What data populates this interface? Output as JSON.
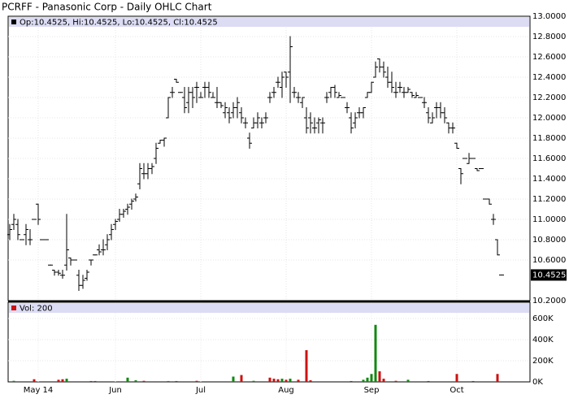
{
  "chart_data": {
    "type": "ohlc",
    "title": "PCRFF - Panasonic Corp - Daily OHLC Chart",
    "info": "Op:10.4525, Hi:10.4525, Lo:10.4525, Cl:10.4525",
    "color": "#000000",
    "grid": true,
    "categories": [
      null,
      null,
      null,
      null,
      null,
      null,
      null,
      "May 14",
      null,
      null,
      null,
      null,
      null,
      null,
      null,
      null,
      null,
      null,
      null,
      null,
      null,
      null,
      null,
      null,
      null,
      null,
      "Jun",
      null,
      null,
      null,
      null,
      null,
      null,
      null,
      null,
      null,
      null,
      null,
      null,
      null,
      null,
      null,
      null,
      null,
      null,
      null,
      null,
      "Jul",
      null,
      null,
      null,
      null,
      null,
      null,
      null,
      null,
      null,
      null,
      null,
      null,
      null,
      null,
      null,
      null,
      null,
      null,
      null,
      null,
      "Aug",
      null,
      null,
      null,
      null,
      null,
      null,
      null,
      null,
      null,
      null,
      null,
      null,
      null,
      null,
      null,
      null,
      null,
      null,
      null,
      null,
      "Sep",
      null,
      null,
      null,
      null,
      null,
      null,
      null,
      null,
      null,
      null,
      null,
      null,
      null,
      null,
      null,
      null,
      null,
      null,
      null,
      null,
      "Oct",
      null,
      null,
      null,
      null,
      null,
      null,
      null,
      null,
      null,
      null,
      null
    ],
    "bars": [
      [
        10.85,
        10.95,
        10.8,
        10.9
      ],
      [
        10.95,
        11.05,
        10.9,
        11.0
      ],
      [
        10.95,
        11.0,
        10.8,
        10.85
      ],
      [
        10.8,
        10.8,
        10.8,
        10.8
      ],
      [
        10.85,
        10.95,
        10.75,
        10.9
      ],
      [
        10.8,
        10.9,
        10.75,
        10.8
      ],
      [
        11.0,
        11.0,
        11.0,
        11.0
      ],
      [
        11.15,
        11.15,
        10.95,
        11.0
      ],
      [
        10.8,
        10.8,
        10.8,
        10.8
      ],
      [
        10.8,
        10.8,
        10.8,
        10.8
      ],
      [
        10.55,
        10.55,
        10.55,
        10.55
      ],
      [
        10.5,
        10.5,
        10.45,
        10.48
      ],
      [
        10.48,
        10.5,
        10.45,
        10.47
      ],
      [
        10.45,
        10.5,
        10.42,
        10.45
      ],
      [
        10.55,
        11.05,
        10.5,
        10.7
      ],
      [
        10.62,
        10.62,
        10.55,
        10.6
      ],
      [
        10.6,
        10.6,
        10.6,
        10.6
      ],
      [
        10.45,
        10.5,
        10.3,
        10.35
      ],
      [
        10.35,
        10.45,
        10.32,
        10.4
      ],
      [
        10.42,
        10.5,
        10.4,
        10.48
      ],
      [
        10.6,
        10.6,
        10.55,
        10.6
      ],
      [
        10.65,
        10.65,
        10.65,
        10.65
      ],
      [
        10.7,
        10.75,
        10.65,
        10.68
      ],
      [
        10.7,
        10.8,
        10.65,
        10.7
      ],
      [
        10.75,
        10.85,
        10.7,
        10.8
      ],
      [
        10.85,
        10.95,
        10.8,
        10.9
      ],
      [
        10.95,
        11.0,
        10.9,
        10.98
      ],
      [
        11.0,
        11.1,
        10.98,
        11.05
      ],
      [
        11.05,
        11.1,
        11.02,
        11.08
      ],
      [
        11.1,
        11.15,
        11.05,
        11.12
      ],
      [
        11.15,
        11.2,
        11.1,
        11.18
      ],
      [
        11.2,
        11.25,
        11.18,
        11.22
      ],
      [
        11.35,
        11.55,
        11.3,
        11.5
      ],
      [
        11.45,
        11.55,
        11.4,
        11.45
      ],
      [
        11.45,
        11.55,
        11.4,
        11.5
      ],
      [
        11.5,
        11.55,
        11.45,
        11.52
      ],
      [
        11.6,
        11.75,
        11.55,
        11.7
      ],
      [
        11.75,
        11.78,
        11.75,
        11.78
      ],
      [
        11.78,
        11.8,
        11.72,
        11.8
      ],
      [
        12.0,
        12.2,
        12.0,
        12.2
      ],
      [
        12.25,
        12.3,
        12.2,
        12.25
      ],
      [
        12.38,
        12.38,
        12.35,
        12.35
      ],
      [
        12.25,
        12.25,
        12.25,
        12.25
      ],
      [
        12.2,
        12.3,
        12.05,
        12.1
      ],
      [
        12.15,
        12.3,
        12.05,
        12.25
      ],
      [
        12.25,
        12.3,
        12.1,
        12.2
      ],
      [
        12.3,
        12.35,
        12.15,
        12.3
      ],
      [
        12.2,
        12.25,
        12.2,
        12.2
      ],
      [
        12.3,
        12.35,
        12.2,
        12.3
      ],
      [
        12.3,
        12.35,
        12.2,
        12.25
      ],
      [
        12.2,
        12.25,
        12.2,
        12.2
      ],
      [
        12.15,
        12.3,
        12.1,
        12.15
      ],
      [
        12.15,
        12.15,
        12.1,
        12.12
      ],
      [
        12.05,
        12.15,
        12.0,
        12.1
      ],
      [
        12.05,
        12.1,
        11.95,
        12.0
      ],
      [
        12.05,
        12.15,
        12.0,
        12.1
      ],
      [
        12.1,
        12.2,
        12.0,
        12.15
      ],
      [
        12.05,
        12.1,
        11.95,
        12.0
      ],
      [
        11.95,
        12.0,
        11.9,
        11.95
      ],
      [
        11.8,
        11.85,
        11.7,
        11.75
      ],
      [
        11.9,
        12.0,
        11.9,
        11.95
      ],
      [
        11.95,
        12.05,
        11.9,
        12.0
      ],
      [
        11.95,
        12.0,
        11.9,
        11.95
      ],
      [
        12.0,
        12.05,
        11.95,
        12.0
      ],
      [
        12.2,
        12.25,
        12.15,
        12.2
      ],
      [
        12.25,
        12.3,
        12.2,
        12.25
      ],
      [
        12.35,
        12.4,
        12.3,
        12.35
      ],
      [
        12.3,
        12.45,
        12.2,
        12.4
      ],
      [
        12.45,
        12.45,
        12.3,
        12.4
      ],
      [
        12.45,
        12.8,
        12.15,
        12.7
      ],
      [
        12.25,
        12.3,
        12.2,
        12.25
      ],
      [
        12.2,
        12.25,
        12.15,
        12.2
      ],
      [
        12.15,
        12.2,
        12.1,
        12.2
      ],
      [
        12.0,
        12.1,
        11.85,
        11.9
      ],
      [
        12.0,
        12.05,
        11.85,
        11.95
      ],
      [
        11.9,
        12.0,
        11.85,
        11.9
      ],
      [
        11.95,
        12.0,
        11.85,
        11.98
      ],
      [
        11.95,
        12.0,
        11.85,
        11.95
      ],
      [
        12.2,
        12.25,
        12.15,
        12.2
      ],
      [
        12.25,
        12.3,
        12.2,
        12.3
      ],
      [
        12.3,
        12.32,
        12.2,
        12.25
      ],
      [
        12.2,
        12.25,
        12.2,
        12.22
      ],
      [
        12.2,
        12.2,
        12.2,
        12.2
      ],
      [
        12.1,
        12.15,
        12.05,
        12.1
      ],
      [
        12.0,
        12.05,
        11.85,
        11.9
      ],
      [
        11.95,
        12.05,
        11.9,
        12.0
      ],
      [
        12.05,
        12.1,
        12.0,
        12.05
      ],
      [
        12.05,
        12.1,
        12.0,
        12.1
      ],
      [
        12.2,
        12.25,
        12.2,
        12.25
      ],
      [
        12.25,
        12.35,
        12.25,
        12.35
      ],
      [
        12.4,
        12.55,
        12.4,
        12.5
      ],
      [
        12.58,
        12.58,
        12.45,
        12.5
      ],
      [
        12.5,
        12.55,
        12.4,
        12.45
      ],
      [
        12.4,
        12.5,
        12.3,
        12.35
      ],
      [
        12.35,
        12.45,
        12.25,
        12.3
      ],
      [
        12.25,
        12.35,
        12.2,
        12.25
      ],
      [
        12.3,
        12.35,
        12.25,
        12.3
      ],
      [
        12.25,
        12.3,
        12.2,
        12.25
      ],
      [
        12.25,
        12.3,
        12.25,
        12.28
      ],
      [
        12.25,
        12.25,
        12.2,
        12.22
      ],
      [
        12.2,
        12.25,
        12.2,
        12.22
      ],
      [
        12.2,
        12.2,
        12.2,
        12.2
      ],
      [
        12.15,
        12.2,
        12.1,
        12.15
      ],
      [
        12.05,
        12.1,
        11.95,
        12.0
      ],
      [
        11.95,
        12.05,
        11.95,
        12.0
      ],
      [
        12.1,
        12.15,
        12.0,
        12.1
      ],
      [
        12.1,
        12.15,
        12.0,
        12.05
      ],
      [
        12.05,
        12.1,
        11.95,
        12.0
      ],
      [
        11.95,
        11.95,
        11.85,
        11.9
      ],
      [
        11.9,
        11.95,
        11.85,
        11.9
      ],
      [
        11.75,
        11.75,
        11.7,
        11.7
      ],
      [
        11.5,
        11.5,
        11.35,
        11.45
      ],
      [
        11.6,
        11.6,
        11.6,
        11.6
      ],
      [
        11.55,
        11.65,
        11.55,
        11.6
      ],
      [
        11.6,
        11.6,
        11.6,
        11.6
      ],
      [
        11.5,
        11.5,
        11.48,
        11.48
      ],
      [
        11.5,
        11.5,
        11.5,
        11.5
      ],
      [
        11.2,
        11.2,
        11.2,
        11.2
      ],
      [
        11.2,
        11.2,
        11.15,
        11.15
      ],
      [
        11.0,
        11.05,
        10.95,
        11.0
      ],
      [
        10.8,
        10.8,
        10.65,
        10.65
      ],
      [
        10.4525,
        10.4525,
        10.4525,
        10.4525
      ]
    ],
    "ylim": [
      10.2,
      13.0
    ],
    "yticks": [
      {
        "value": 10.2,
        "label": "10.2000"
      },
      {
        "value": 10.6,
        "label": "10.6000"
      },
      {
        "value": 10.8,
        "label": "10.8000"
      },
      {
        "value": 11.0,
        "label": "11.0000"
      },
      {
        "value": 11.2,
        "label": "11.2000"
      },
      {
        "value": 11.4,
        "label": "11.4000"
      },
      {
        "value": 11.6,
        "label": "11.6000"
      },
      {
        "value": 11.8,
        "label": "11.8000"
      },
      {
        "value": 12.0,
        "label": "12.0000"
      },
      {
        "value": 12.2,
        "label": "12.2000"
      },
      {
        "value": 12.4,
        "label": "12.4000"
      },
      {
        "value": 12.6,
        "label": "12.6000"
      },
      {
        "value": 12.8,
        "label": "12.8000"
      },
      {
        "value": 13.0,
        "label": "13.0000"
      }
    ],
    "last_price": 10.4525,
    "volume": {
      "label": "Vol: 200",
      "up_color": "#118811",
      "down_color": "#cc1111",
      "values": [
        0,
        10000,
        0,
        0,
        0,
        0,
        25000,
        0,
        0,
        0,
        0,
        0,
        20000,
        25000,
        30000,
        0,
        0,
        0,
        0,
        0,
        8000,
        8000,
        0,
        0,
        0,
        0,
        0,
        0,
        0,
        40000,
        0,
        15000,
        0,
        10000,
        0,
        0,
        0,
        0,
        0,
        8000,
        0,
        8000,
        0,
        0,
        0,
        0,
        10000,
        0,
        0,
        0,
        0,
        0,
        0,
        0,
        0,
        50000,
        0,
        65000,
        0,
        0,
        10000,
        0,
        0,
        0,
        40000,
        30000,
        25000,
        30000,
        20000,
        30000,
        0,
        20000,
        0,
        300000,
        15000,
        0,
        0,
        0,
        0,
        0,
        0,
        0,
        0,
        0,
        8000,
        0,
        0,
        20000,
        40000,
        75000,
        540000,
        100000,
        30000,
        0,
        0,
        10000,
        0,
        0,
        20000,
        0,
        0,
        0,
        0,
        8000,
        0,
        0,
        0,
        0,
        0,
        0,
        75000,
        0,
        0,
        0,
        8000,
        0,
        0,
        0,
        0,
        0,
        75000,
        0
      ],
      "ylim": [
        0,
        750000
      ],
      "yticks": [
        {
          "value": 0,
          "label": "0K"
        },
        {
          "value": 200000,
          "label": "200K"
        },
        {
          "value": 400000,
          "label": "400K"
        },
        {
          "value": 600000,
          "label": "600K"
        }
      ]
    }
  }
}
